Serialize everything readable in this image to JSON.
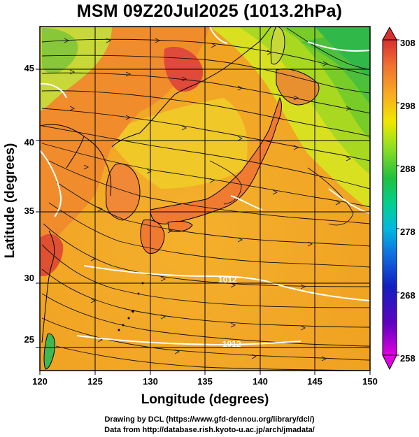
{
  "title": "MSM 09Z20Jul2025 (1013.2hPa)",
  "x_axis": {
    "label": "Longitude (degrees)",
    "ticks": [
      "120",
      "125",
      "130",
      "135",
      "140",
      "145",
      "150"
    ]
  },
  "y_axis": {
    "label": "Latitude  (degrees)",
    "ticks": [
      "25",
      "30",
      "35",
      "40",
      "45"
    ]
  },
  "colorbar": {
    "ticks": [
      "258",
      "268",
      "278",
      "288",
      "298",
      "308"
    ],
    "colors": [
      "#e000e0",
      "#7000c0",
      "#1020b0",
      "#1060e0",
      "#00b0e0",
      "#00d0a0",
      "#20c040",
      "#60d020",
      "#c0e020",
      "#f0e000",
      "#f0a020",
      "#f08040",
      "#e04040",
      "#d03030"
    ]
  },
  "contour_labels": [
    "1012",
    "1012"
  ],
  "footer": {
    "line1": "Drawing by DCL (https://www.gfd-dennou.org/library/dcl/)",
    "line2": "Data from http://database.rish.kyoto-u.ac.jp/arch/jmadata/"
  }
}
